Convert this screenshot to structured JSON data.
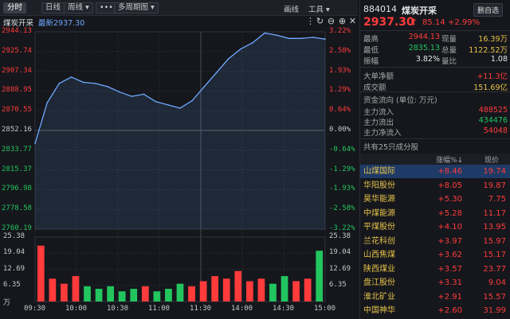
{
  "toolbar": {
    "tabs": [
      "分时",
      "日线",
      "周线",
      "•••",
      "多周期图"
    ],
    "draw_label": "画线",
    "tools_label": "工具"
  },
  "chart_header": {
    "name": "煤炭开采",
    "latest_label": "最新2937.30"
  },
  "y_left": [
    "2944.13",
    "2925.74",
    "2907.34",
    "2888.95",
    "2870.55",
    "2852.16",
    "2833.77",
    "2815.37",
    "2796.98",
    "2778.58",
    "2760.19"
  ],
  "y_right": [
    "3.22%",
    "2.58%",
    "1.93%",
    "1.29%",
    "0.64%",
    "0.00%",
    "-0.64%",
    "-1.29%",
    "-1.93%",
    "-2.58%",
    "-3.22%"
  ],
  "vol_left": [
    "25.38",
    "19.04",
    "12.69",
    "6.35",
    "万"
  ],
  "vol_right": [
    "25.38",
    "19.04",
    "12.69",
    "6.35"
  ],
  "x_labels": [
    "09:30",
    "10:00",
    "10:30",
    "11:00",
    "11:30",
    "14:00",
    "14:30",
    "15:00"
  ],
  "colors": {
    "up": "#ff3b3b",
    "down": "#22c55e",
    "line": "#6ea8ff",
    "accent": "#e7c24a"
  },
  "chart_data": {
    "type": "line",
    "prev_close": 2852.16,
    "ylim": [
      2760.19,
      2944.13
    ],
    "x": [
      "09:30",
      "09:40",
      "09:50",
      "10:00",
      "10:10",
      "10:20",
      "10:30",
      "10:40",
      "10:50",
      "11:00",
      "11:10",
      "11:20",
      "11:30",
      "13:10",
      "13:20",
      "13:30",
      "13:40",
      "13:50",
      "14:00",
      "14:10",
      "14:20",
      "14:30",
      "14:40",
      "14:50",
      "15:00"
    ],
    "values": [
      2840,
      2878,
      2896,
      2902,
      2897,
      2896,
      2893,
      2888,
      2884,
      2886,
      2879,
      2876,
      2873,
      2880,
      2893,
      2906,
      2919,
      2928,
      2934,
      2943,
      2941,
      2938,
      2938,
      2939,
      2937.3
    ],
    "volume_ylim": [
      0,
      25.38
    ],
    "volume_unit": "万",
    "volume": [
      22,
      9,
      7,
      10,
      6,
      5,
      6,
      4,
      5,
      6,
      4,
      5,
      7,
      6,
      8,
      10,
      9,
      12,
      8,
      9,
      7,
      10,
      8,
      9,
      20
    ]
  },
  "panel": {
    "code": "884014",
    "name": "煤炭开采",
    "btn_remove": "删自选",
    "price": "2937.30",
    "arrow": "↑",
    "change": "85.14",
    "change_pct": "+2.99%",
    "stats": [
      {
        "l1": "最高",
        "v1": "2944.13",
        "l2": "现量",
        "v2": "16.39万"
      },
      {
        "l1": "最低",
        "v1": "2835.13",
        "l2": "总量",
        "v2": "1122.52万"
      },
      {
        "l1": "振幅",
        "v1": "3.82%",
        "l2": "量比",
        "v2": "1.08"
      }
    ],
    "big_net_label": "大单净额",
    "big_net_value": "+11.3亿",
    "turnover_label": "成交额",
    "turnover_value": "151.69亿",
    "flow_title": "资金流向 (单位: 万元)",
    "flows": [
      {
        "label": "主力流入",
        "value": "488525"
      },
      {
        "label": "主力流出",
        "value": "434476"
      },
      {
        "label": "主力净流入",
        "value": "54048"
      }
    ],
    "components_title": "共有25只成分股",
    "col_headers": [
      "涨幅%↓",
      "现价"
    ],
    "stocks": [
      {
        "name": "山煤国际",
        "pct": "+8.46",
        "price": "19.74"
      },
      {
        "name": "华阳股份",
        "pct": "+8.05",
        "price": "19.87"
      },
      {
        "name": "昊华能源",
        "pct": "+5.30",
        "price": "7.75"
      },
      {
        "name": "中煤能源",
        "pct": "+5.28",
        "price": "11.17"
      },
      {
        "name": "平煤股份",
        "pct": "+4.10",
        "price": "13.95"
      },
      {
        "name": "兰花科创",
        "pct": "+3.97",
        "price": "15.97"
      },
      {
        "name": "山西焦煤",
        "pct": "+3.62",
        "price": "15.17"
      },
      {
        "name": "陕西煤业",
        "pct": "+3.57",
        "price": "23.77"
      },
      {
        "name": "盘江股份",
        "pct": "+3.31",
        "price": "9.04"
      },
      {
        "name": "淮北矿业",
        "pct": "+2.91",
        "price": "15.57"
      },
      {
        "name": "中国神华",
        "pct": "+2.60",
        "price": "31.99"
      }
    ]
  }
}
